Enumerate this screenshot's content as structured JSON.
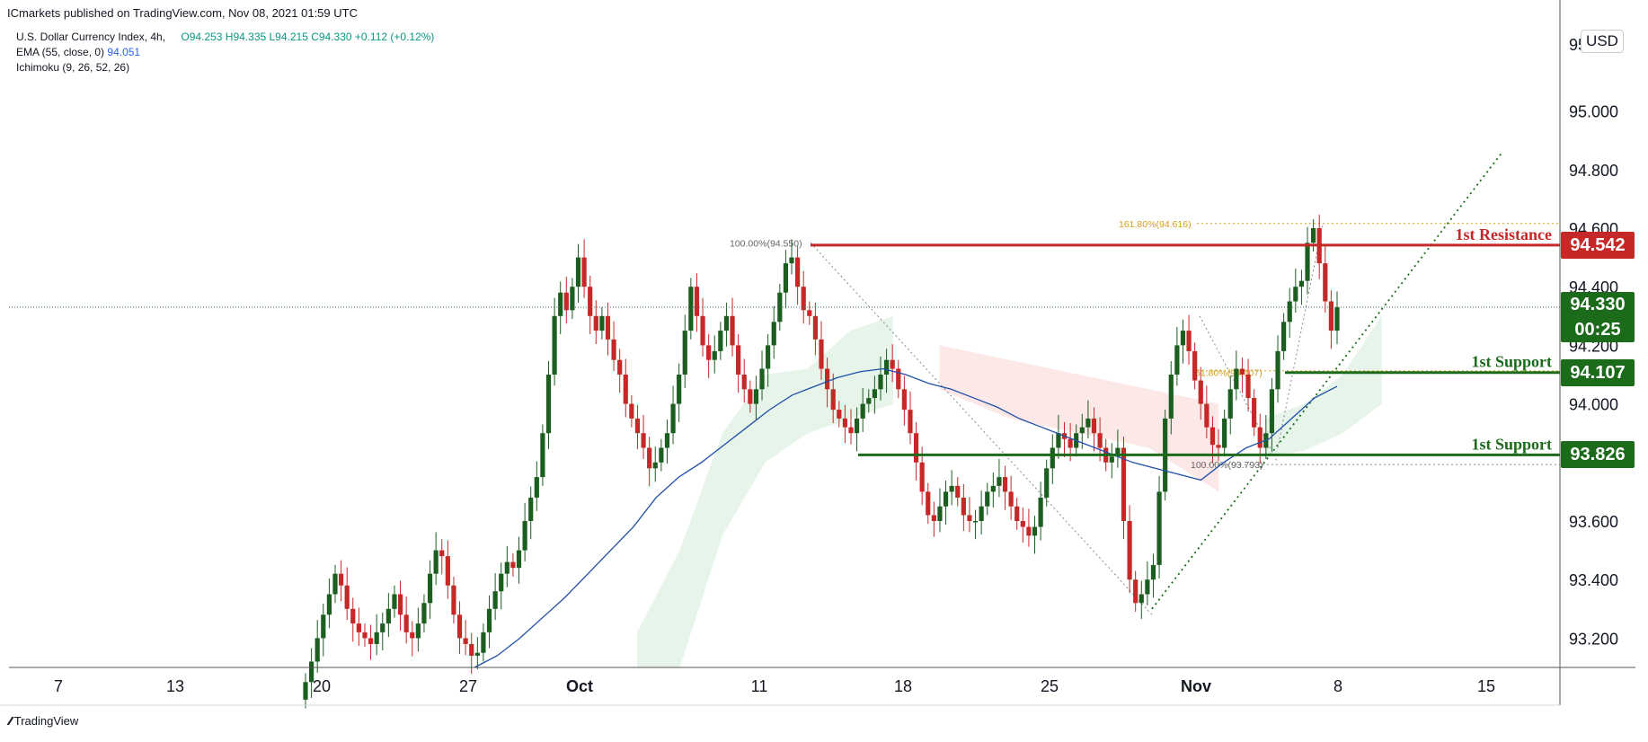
{
  "header": {
    "published": "ICmarkets published on TradingView.com, Nov 08, 2021 01:59 UTC",
    "symbol": "U.S. Dollar Currency Index, 4h,",
    "ohlc": "O94.253 H94.335 L94.215 C94.330 +0.112 (+0.12%)",
    "ema_label": "EMA (55, close, 0)",
    "ema_value": "94.051",
    "ichimoku_label": "Ichimoku (9, 26, 52, 26)"
  },
  "currency_button": "USD",
  "brand": "TradingView",
  "colors": {
    "up": "#1b5e20",
    "down": "#c62828",
    "ema": "#1f4fa8",
    "resistance": "#c62828",
    "support": "#1b6b1b",
    "fib": "#d4a017",
    "cloud_bull": "#e6f4ea",
    "cloud_bear": "#fde8e8"
  },
  "chart_data": {
    "type": "candlestick",
    "symbol": "U.S. Dollar Currency Index",
    "timeframe": "4h",
    "y_ticks": [
      "95.000",
      "94.800",
      "94.600",
      "94.400",
      "94.200",
      "94.000",
      "93.600",
      "93.400",
      "93.200"
    ],
    "y_top_partial": "95.200",
    "ylim": [
      93.1,
      95.2
    ],
    "x_ticks": [
      "7",
      "13",
      "20",
      "27",
      "Oct",
      "11",
      "18",
      "25",
      "Nov",
      "8",
      "15"
    ],
    "last_price": "94.330",
    "countdown": "00:25",
    "levels": [
      {
        "name": "1st Resistance",
        "value": 94.542,
        "label": "94.542",
        "kind": "resistance"
      },
      {
        "name": "1st Support",
        "value": 94.107,
        "label": "94.107",
        "kind": "support"
      },
      {
        "name": "1st Support",
        "value": 93.826,
        "label": "93.826",
        "kind": "support"
      }
    ],
    "fib_labels": [
      {
        "text": "100.00%(94.550)",
        "value": 94.55
      },
      {
        "text": "161.80%(94.616)",
        "value": 94.616
      },
      {
        "text": "61.80%(94.107)",
        "value": 94.107
      },
      {
        "text": "100.00%(93.793)",
        "value": 93.793
      }
    ],
    "closes": [
      93.05,
      93.12,
      93.2,
      93.28,
      93.35,
      93.42,
      93.38,
      93.3,
      93.25,
      93.22,
      93.2,
      93.18,
      93.22,
      93.25,
      93.3,
      93.35,
      93.28,
      93.22,
      93.2,
      93.25,
      93.32,
      93.42,
      93.5,
      93.48,
      93.38,
      93.28,
      93.2,
      93.18,
      93.14,
      93.15,
      93.22,
      93.3,
      93.36,
      93.42,
      93.46,
      93.44,
      93.5,
      93.6,
      93.68,
      93.75,
      93.9,
      94.1,
      94.3,
      94.38,
      94.32,
      94.4,
      94.5,
      94.4,
      94.3,
      94.25,
      94.3,
      94.22,
      94.15,
      94.1,
      94.0,
      93.95,
      93.9,
      93.85,
      93.78,
      93.8,
      93.85,
      93.9,
      94.0,
      94.1,
      94.25,
      94.4,
      94.3,
      94.2,
      94.15,
      94.18,
      94.25,
      94.3,
      94.2,
      94.1,
      94.05,
      94.0,
      94.05,
      94.12,
      94.2,
      94.28,
      94.38,
      94.48,
      94.5,
      94.4,
      94.32,
      94.3,
      94.22,
      94.12,
      94.05,
      93.98,
      93.95,
      93.92,
      93.9,
      93.95,
      94.0,
      94.02,
      94.05,
      94.1,
      94.15,
      94.12,
      94.05,
      93.98,
      93.9,
      93.8,
      93.7,
      93.62,
      93.6,
      93.65,
      93.7,
      93.72,
      93.68,
      93.62,
      93.6,
      93.6,
      93.65,
      93.7,
      93.72,
      93.75,
      93.7,
      93.65,
      93.6,
      93.58,
      93.55,
      93.58,
      93.68,
      93.78,
      93.85,
      93.9,
      93.88,
      93.85,
      93.9,
      93.92,
      93.95,
      93.9,
      93.85,
      93.8,
      93.82,
      93.85,
      93.6,
      93.4,
      93.32,
      93.35,
      93.4,
      93.45,
      93.7,
      93.95,
      94.1,
      94.2,
      94.25,
      94.18,
      94.08,
      94.0,
      93.92,
      93.86,
      93.85,
      93.95,
      94.05,
      94.12,
      94.1,
      94.02,
      93.92,
      93.85,
      93.9,
      94.05,
      94.18,
      94.28,
      94.35,
      94.4,
      94.42,
      94.55,
      94.6,
      94.48,
      94.35,
      94.25,
      94.33
    ],
    "ema": [
      93.1,
      93.14,
      93.2,
      93.27,
      93.34,
      93.42,
      93.5,
      93.58,
      93.68,
      93.75,
      93.8,
      93.86,
      93.92,
      93.98,
      94.03,
      94.06,
      94.09,
      94.11,
      94.12,
      94.1,
      94.07,
      94.05,
      94.02,
      93.99,
      93.95,
      93.92,
      93.89,
      93.86,
      93.83,
      93.8,
      93.78,
      93.76,
      93.74,
      93.8,
      93.85,
      93.88,
      93.95,
      94.02,
      94.06
    ],
    "cloud": [
      {
        "x0": 0.405,
        "x1": 0.57,
        "top": [
          93.22,
          93.5,
          93.9,
          94.1,
          94.12,
          94.25,
          94.3
        ],
        "bottom": [
          93.1,
          93.1,
          93.55,
          93.8,
          93.9,
          93.95,
          94.0
        ],
        "kind": "bull"
      },
      {
        "x0": 0.6,
        "x1": 0.78,
        "top": [
          94.2,
          94.15,
          94.1,
          94.05,
          94.0
        ],
        "bottom": [
          94.05,
          93.95,
          93.9,
          93.85,
          93.7
        ],
        "kind": "bear"
      },
      {
        "x0": 0.81,
        "x1": 0.885,
        "top": [
          93.95,
          94.0,
          94.1,
          94.3
        ],
        "bottom": [
          93.82,
          93.84,
          93.9,
          94.0
        ],
        "kind": "bull"
      }
    ]
  }
}
